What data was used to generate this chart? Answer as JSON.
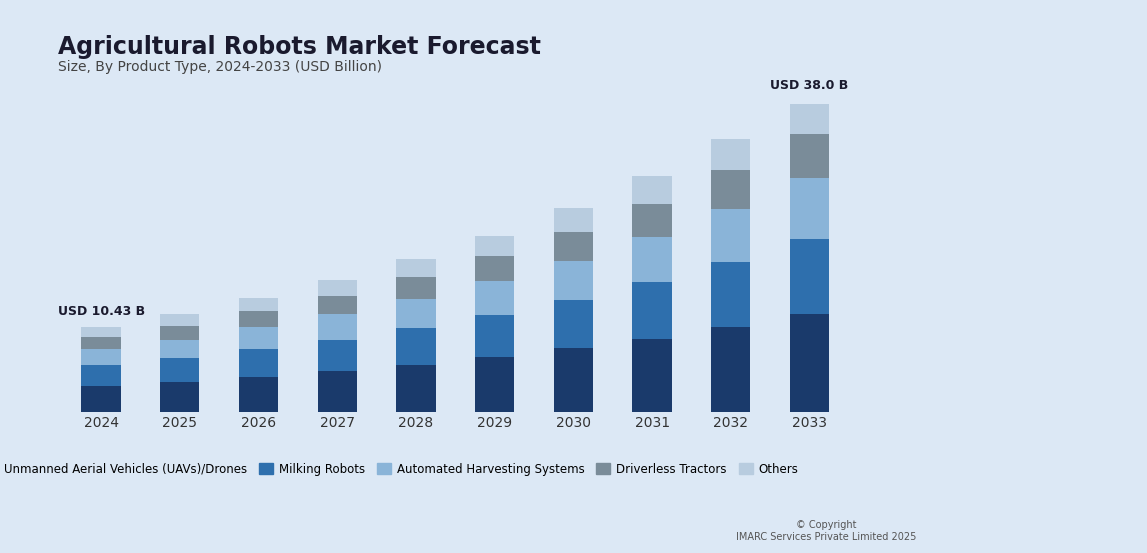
{
  "title": "Agricultural Robots Market Forecast",
  "subtitle": "Size, By Product Type, 2024-2033 (USD Billion)",
  "years": [
    2024,
    2025,
    2026,
    2027,
    2028,
    2029,
    2030,
    2031,
    2032,
    2033
  ],
  "label_first": "USD 10.43 B",
  "label_last": "USD 38.0 B",
  "segments": {
    "Unmanned Aerial Vehicles (UAVs)/Drones": [
      3.2,
      3.7,
      4.3,
      5.0,
      5.8,
      6.7,
      7.8,
      9.0,
      10.4,
      12.0
    ],
    "Milking Robots": [
      2.5,
      2.9,
      3.4,
      3.9,
      4.5,
      5.2,
      6.0,
      7.0,
      8.1,
      9.3
    ],
    "Automated Harvesting Systems": [
      2.0,
      2.3,
      2.7,
      3.1,
      3.6,
      4.2,
      4.8,
      5.6,
      6.5,
      7.5
    ],
    "Driverless Tractors": [
      1.5,
      1.7,
      2.0,
      2.3,
      2.7,
      3.1,
      3.6,
      4.1,
      4.8,
      5.5
    ],
    "Others": [
      1.23,
      1.4,
      1.6,
      1.9,
      2.2,
      2.5,
      2.9,
      3.4,
      3.9,
      3.7
    ]
  },
  "colors": {
    "Unmanned Aerial Vehicles (UAVs)/Drones": "#1a3a6b",
    "Milking Robots": "#2e6fad",
    "Automated Harvesting Systems": "#8ab4d8",
    "Driverless Tractors": "#7a8c99",
    "Others": "#b8ccdf"
  },
  "background_color": "#dce8f5",
  "bar_width": 0.5,
  "ylim": [
    0,
    42
  ],
  "copyright": "© Copyright\nIMARC Services Private Limited 2025"
}
